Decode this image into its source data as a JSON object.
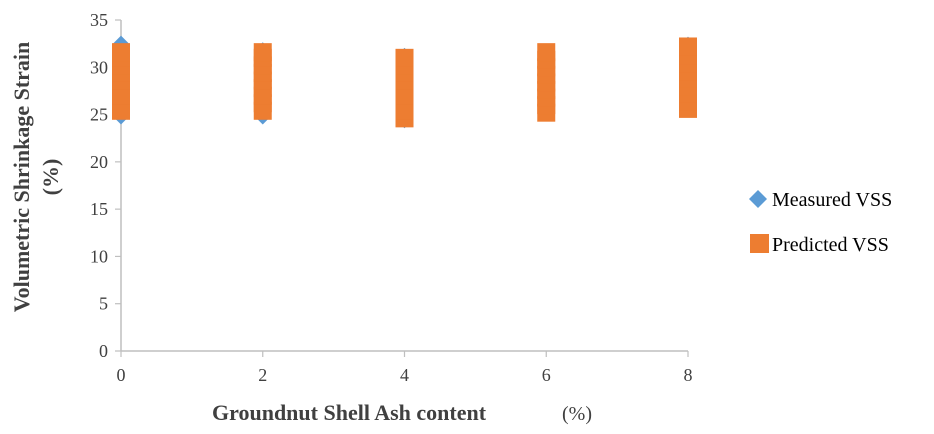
{
  "chart_data": {
    "type": "scatter",
    "title": "",
    "xlabel": "Groundnut Shell Ash content",
    "xlabel_unit": "(%)",
    "ylabel_line1": "Volumetric Shrinkage Strain",
    "ylabel_line2": "(%)",
    "x_ticks": [
      "0",
      "2",
      "4",
      "6",
      "8"
    ],
    "y_ticks": [
      "0",
      "5",
      "10",
      "15",
      "20",
      "25",
      "30",
      "35"
    ],
    "xlim": [
      0,
      8
    ],
    "ylim": [
      0,
      35
    ],
    "grid": false,
    "legend_position": "right",
    "series": [
      {
        "name": "Measured VSS",
        "marker": "diamond",
        "color": "#5B9BD5",
        "points": [
          {
            "x": 0,
            "y": 24.8
          },
          {
            "x": 0,
            "y": 25.5
          },
          {
            "x": 0,
            "y": 26.2
          },
          {
            "x": 0,
            "y": 27.0
          },
          {
            "x": 0,
            "y": 27.8
          },
          {
            "x": 0,
            "y": 28.6
          },
          {
            "x": 0,
            "y": 29.4
          },
          {
            "x": 0,
            "y": 30.2
          },
          {
            "x": 0,
            "y": 31.0
          },
          {
            "x": 0,
            "y": 31.8
          },
          {
            "x": 0,
            "y": 32.5
          },
          {
            "x": 2,
            "y": 24.8
          },
          {
            "x": 2,
            "y": 25.6
          },
          {
            "x": 2,
            "y": 26.4
          },
          {
            "x": 2,
            "y": 27.2
          },
          {
            "x": 2,
            "y": 28.0
          },
          {
            "x": 2,
            "y": 28.8
          },
          {
            "x": 2,
            "y": 29.6
          },
          {
            "x": 2,
            "y": 30.4
          },
          {
            "x": 2,
            "y": 31.2
          },
          {
            "x": 2,
            "y": 31.8
          },
          {
            "x": 4,
            "y": 24.4
          },
          {
            "x": 4,
            "y": 25.2
          },
          {
            "x": 4,
            "y": 26.0
          },
          {
            "x": 4,
            "y": 26.8
          },
          {
            "x": 4,
            "y": 27.6
          },
          {
            "x": 4,
            "y": 28.4
          },
          {
            "x": 4,
            "y": 29.2
          },
          {
            "x": 4,
            "y": 30.0
          },
          {
            "x": 4,
            "y": 30.8
          },
          {
            "x": 4,
            "y": 31.2
          },
          {
            "x": 6,
            "y": 25.2
          },
          {
            "x": 6,
            "y": 26.0
          },
          {
            "x": 6,
            "y": 26.8
          },
          {
            "x": 6,
            "y": 27.6
          },
          {
            "x": 6,
            "y": 28.4
          },
          {
            "x": 6,
            "y": 29.2
          },
          {
            "x": 6,
            "y": 30.0
          },
          {
            "x": 6,
            "y": 30.8
          },
          {
            "x": 6,
            "y": 31.6
          },
          {
            "x": 8,
            "y": 25.6
          },
          {
            "x": 8,
            "y": 26.4
          },
          {
            "x": 8,
            "y": 27.2
          },
          {
            "x": 8,
            "y": 28.0
          },
          {
            "x": 8,
            "y": 28.8
          },
          {
            "x": 8,
            "y": 29.6
          },
          {
            "x": 8,
            "y": 30.4
          },
          {
            "x": 8,
            "y": 31.2
          },
          {
            "x": 8,
            "y": 32.0
          },
          {
            "x": 8,
            "y": 32.4
          }
        ]
      },
      {
        "name": "Predicted VSS",
        "marker": "square",
        "color": "#ED7D31",
        "points": [
          {
            "x": 0,
            "y": 25.4
          },
          {
            "x": 0,
            "y": 26.2
          },
          {
            "x": 0,
            "y": 27.0
          },
          {
            "x": 0,
            "y": 27.8
          },
          {
            "x": 0,
            "y": 28.6
          },
          {
            "x": 0,
            "y": 29.4
          },
          {
            "x": 0,
            "y": 30.2
          },
          {
            "x": 0,
            "y": 31.0
          },
          {
            "x": 0,
            "y": 31.6
          },
          {
            "x": 2,
            "y": 25.4
          },
          {
            "x": 2,
            "y": 26.2
          },
          {
            "x": 2,
            "y": 27.0
          },
          {
            "x": 2,
            "y": 27.8
          },
          {
            "x": 2,
            "y": 28.6
          },
          {
            "x": 2,
            "y": 29.4
          },
          {
            "x": 2,
            "y": 30.2
          },
          {
            "x": 2,
            "y": 31.0
          },
          {
            "x": 2,
            "y": 31.6
          },
          {
            "x": 4,
            "y": 24.6
          },
          {
            "x": 4,
            "y": 25.4
          },
          {
            "x": 4,
            "y": 26.2
          },
          {
            "x": 4,
            "y": 27.0
          },
          {
            "x": 4,
            "y": 27.8
          },
          {
            "x": 4,
            "y": 28.6
          },
          {
            "x": 4,
            "y": 29.4
          },
          {
            "x": 4,
            "y": 30.2
          },
          {
            "x": 4,
            "y": 31.0
          },
          {
            "x": 6,
            "y": 25.2
          },
          {
            "x": 6,
            "y": 26.0
          },
          {
            "x": 6,
            "y": 26.8
          },
          {
            "x": 6,
            "y": 27.6
          },
          {
            "x": 6,
            "y": 28.4
          },
          {
            "x": 6,
            "y": 29.2
          },
          {
            "x": 6,
            "y": 30.0
          },
          {
            "x": 6,
            "y": 30.8
          },
          {
            "x": 6,
            "y": 31.6
          },
          {
            "x": 8,
            "y": 25.6
          },
          {
            "x": 8,
            "y": 26.4
          },
          {
            "x": 8,
            "y": 27.2
          },
          {
            "x": 8,
            "y": 28.0
          },
          {
            "x": 8,
            "y": 28.8
          },
          {
            "x": 8,
            "y": 29.6
          },
          {
            "x": 8,
            "y": 30.4
          },
          {
            "x": 8,
            "y": 31.2
          },
          {
            "x": 8,
            "y": 32.2
          }
        ]
      }
    ]
  }
}
